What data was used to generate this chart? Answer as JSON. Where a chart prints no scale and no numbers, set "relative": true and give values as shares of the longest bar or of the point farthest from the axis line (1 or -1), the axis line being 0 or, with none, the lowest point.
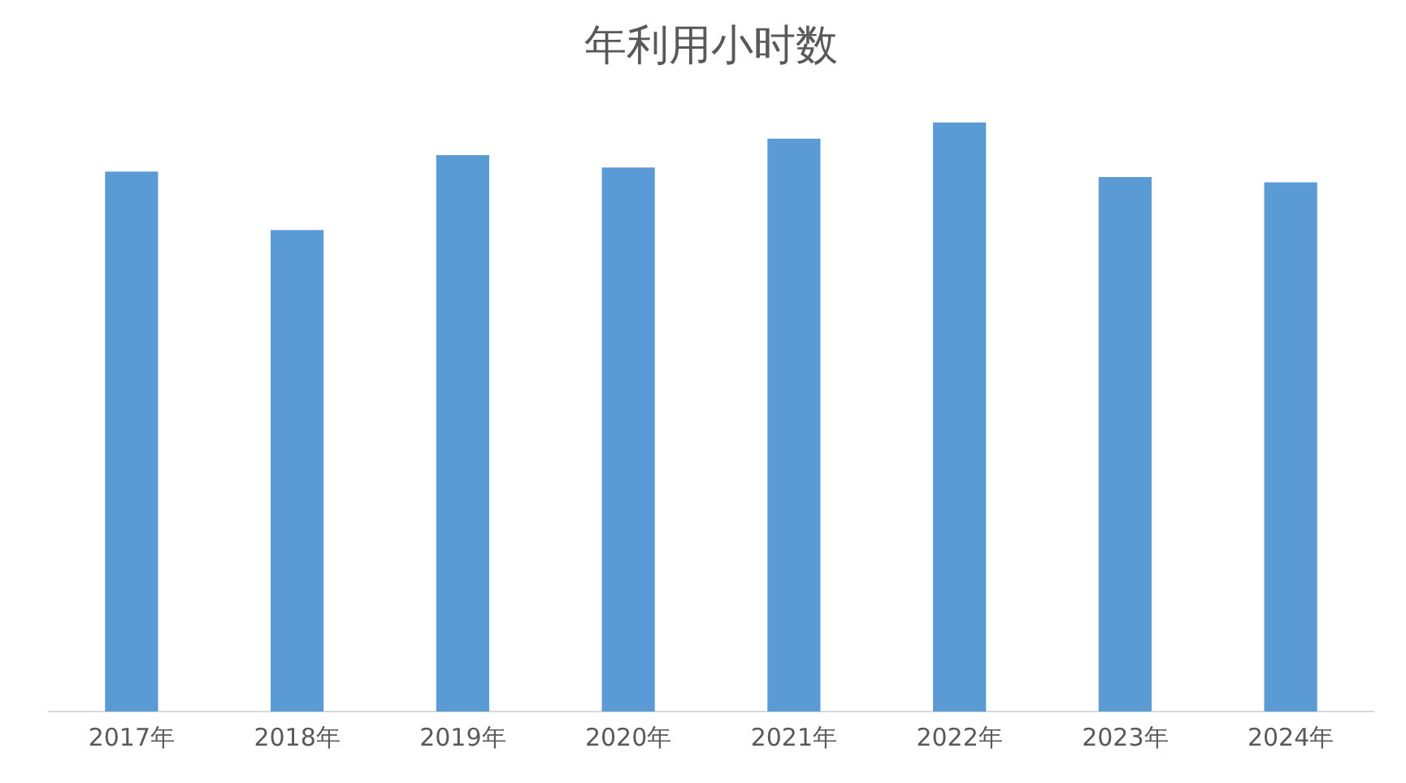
{
  "chart_data": {
    "type": "bar",
    "title": "年利用小时数",
    "relative": true,
    "grid": false,
    "legend": false,
    "categories": [
      "2017年",
      "2018年",
      "2019年",
      "2020年",
      "2021年",
      "2022年",
      "2023年",
      "2024年"
    ],
    "values": [
      0.916,
      0.817,
      0.944,
      0.923,
      0.972,
      1,
      0.907,
      0.898
    ],
    "color": "#5b9bd5"
  }
}
